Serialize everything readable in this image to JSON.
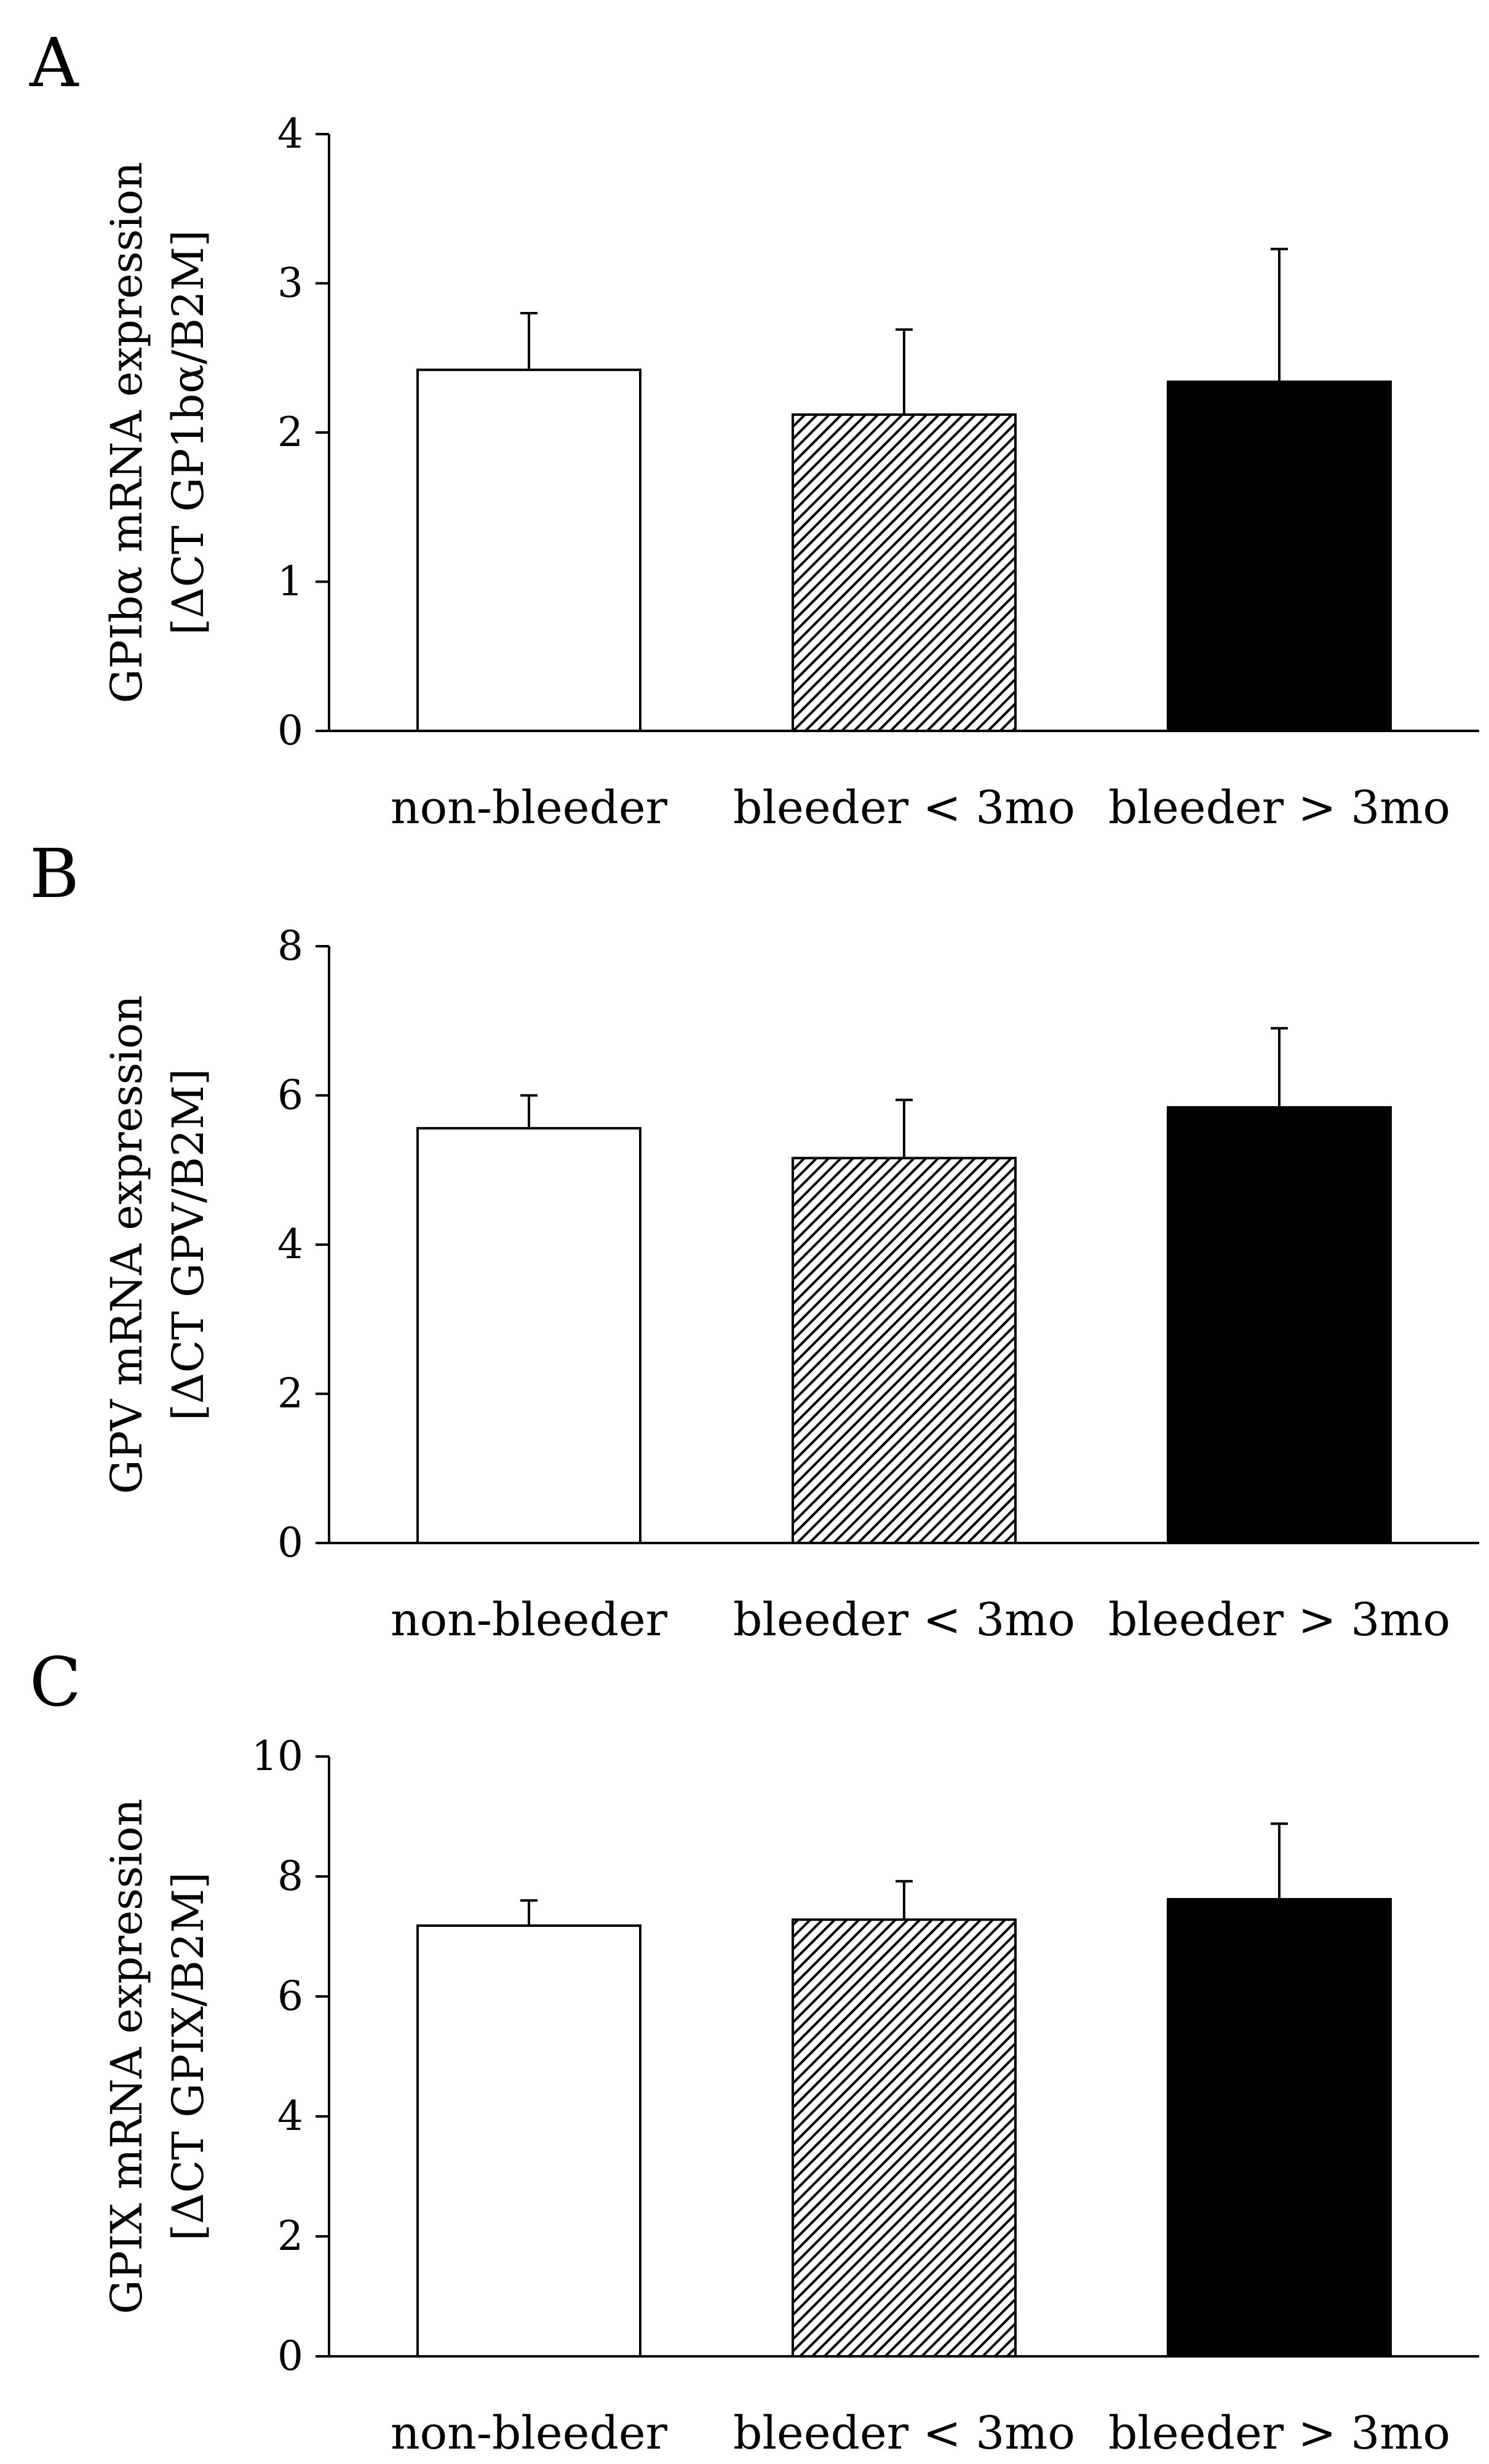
{
  "chart_data": [
    {
      "type": "bar",
      "panel": "A",
      "categories": [
        "non-bleeder",
        "bleeder < 3mo",
        "bleeder > 3mo"
      ],
      "values": [
        2.42,
        2.12,
        2.34
      ],
      "errors": [
        0.38,
        0.57,
        0.89
      ],
      "ylabel_line1": "GPIbα mRNA expression",
      "ylabel_line2": "[ΔCT GP1bα/B2M]",
      "ylim": [
        0,
        4
      ],
      "yticks": [
        0,
        1,
        2,
        3,
        4
      ],
      "xlabel": ""
    },
    {
      "type": "bar",
      "panel": "B",
      "categories": [
        "non-bleeder",
        "bleeder < 3mo",
        "bleeder > 3mo"
      ],
      "values": [
        5.56,
        5.16,
        5.84
      ],
      "errors": [
        0.44,
        0.78,
        1.06
      ],
      "ylabel_line1": "GPV mRNA expression",
      "ylabel_line2": "[ΔCT GPV/B2M]",
      "ylim": [
        0,
        8
      ],
      "yticks": [
        0,
        2,
        4,
        6,
        8
      ],
      "xlabel": ""
    },
    {
      "type": "bar",
      "panel": "C",
      "categories": [
        "non-bleeder",
        "bleeder < 3mo",
        "bleeder > 3mo"
      ],
      "values": [
        7.18,
        7.28,
        7.62
      ],
      "errors": [
        0.42,
        0.64,
        1.26
      ],
      "ylabel_line1": "GPIX mRNA expression",
      "ylabel_line2": "[ΔCT GPIX/B2M]",
      "ylim": [
        0,
        10
      ],
      "yticks": [
        0,
        2,
        4,
        6,
        8,
        10
      ],
      "xlabel": ""
    }
  ],
  "series_styles": [
    {
      "name": "non-bleeder",
      "fill": "#ffffff"
    },
    {
      "name": "bleeder < 3mo",
      "fill": "hatched"
    },
    {
      "name": "bleeder > 3mo",
      "fill": "#000000"
    }
  ]
}
